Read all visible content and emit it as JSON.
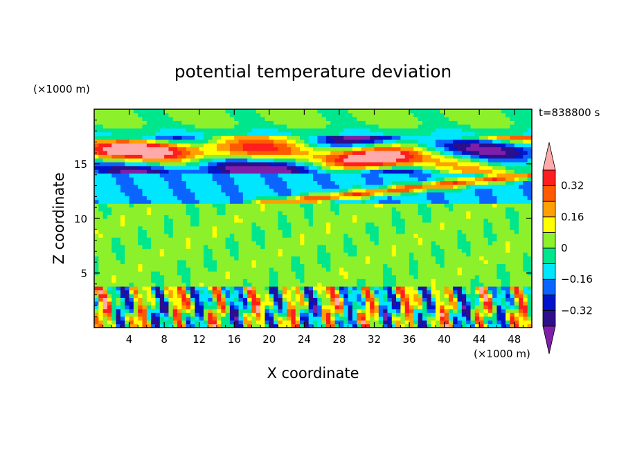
{
  "chart_data": {
    "type": "heatmap",
    "title": "potential temperature deviation",
    "xlabel": "X coordinate",
    "ylabel": "Z coordinate",
    "x_unit": "(×1000 m)",
    "y_unit": "(×1000 m)",
    "time_label": "t=838800 s",
    "xlim": [
      0,
      50
    ],
    "ylim": [
      0,
      20
    ],
    "x_ticks": [
      4,
      8,
      12,
      16,
      20,
      24,
      28,
      32,
      36,
      40,
      44,
      48
    ],
    "x_tick_labels": [
      "4",
      "8",
      "12",
      "16",
      "20",
      "24",
      "28",
      "32",
      "36",
      "40",
      "44",
      "48"
    ],
    "y_ticks": [
      5,
      10,
      15
    ],
    "y_tick_labels": [
      "5",
      "10",
      "15"
    ],
    "colorbar": {
      "levels": [
        -0.48,
        -0.4,
        -0.32,
        -0.24,
        -0.16,
        -0.08,
        0,
        0.08,
        0.16,
        0.24,
        0.32,
        0.4,
        0.48
      ],
      "tick_values": [
        0.32,
        0.16,
        0,
        -0.16,
        -0.32
      ],
      "tick_labels": [
        "0.32",
        "0.16",
        "0",
        "−0.16",
        "−0.32"
      ],
      "colors": [
        "#7f1fa8",
        "#2d0f8c",
        "#0014c8",
        "#0a64ff",
        "#00e6ff",
        "#00e68c",
        "#8cf02a",
        "#ffff00",
        "#ffa000",
        "#ff5a00",
        "#ff1e1e",
        "#ffaaaa"
      ]
    },
    "bands": [
      {
        "z": [
          0,
          3.7
        ],
        "description": "boundary layer: mixed positive and negative deviations"
      },
      {
        "z": [
          3.7,
          11.5
        ],
        "description": "near zero (green)"
      },
      {
        "z": [
          11.5,
          14
        ],
        "description": "negative (cyan/blue) band"
      },
      {
        "z": [
          14,
          17.5
        ],
        "description": "strong alternating positive/negative layers"
      },
      {
        "z": [
          17.5,
          20
        ],
        "description": "near zero (green) aloft"
      }
    ]
  }
}
